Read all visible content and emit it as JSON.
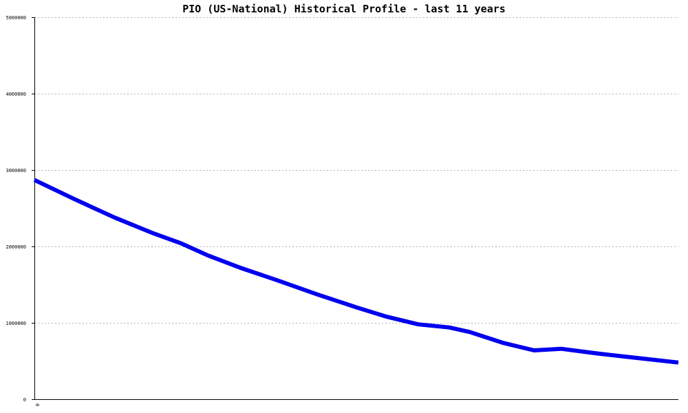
{
  "chart_data": {
    "type": "line",
    "title": "PIO (US-National) Historical Profile - last 11 years",
    "xlabel": "",
    "ylabel": "",
    "x_tick_labels": [
      "0"
    ],
    "y_ticks": [
      0,
      1000000,
      2000000,
      3000000,
      4000000,
      5000000
    ],
    "y_tick_labels": [
      "0",
      "1000000",
      "2000000",
      "3000000",
      "4000000",
      "5000000"
    ],
    "ylim": [
      0,
      5000000
    ],
    "xlim": [
      0,
      1
    ],
    "grid": true,
    "series": [
      {
        "color": "#0000ee",
        "x": [
          0,
          0.062,
          0.124,
          0.185,
          0.228,
          0.27,
          0.32,
          0.376,
          0.44,
          0.501,
          0.547,
          0.596,
          0.644,
          0.676,
          0.727,
          0.776,
          0.818,
          0.873,
          0.926,
          1.0
        ],
        "y": [
          2870000,
          2620000,
          2380000,
          2170000,
          2040000,
          1880000,
          1720000,
          1560000,
          1370000,
          1200000,
          1080000,
          980000,
          940000,
          880000,
          740000,
          640000,
          660000,
          600000,
          550000,
          480000
        ]
      }
    ]
  }
}
